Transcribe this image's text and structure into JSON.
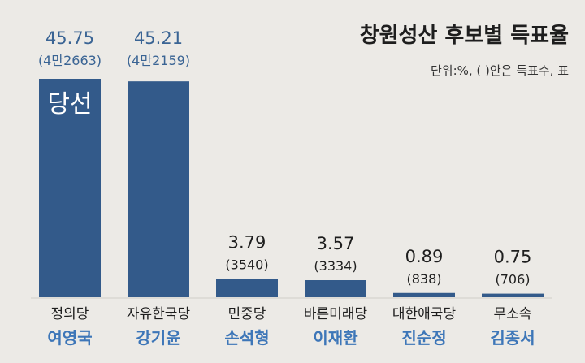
{
  "chart_data": {
    "type": "bar",
    "title": "창원성산 후보별 득표율",
    "subtitle": "단위:%, ( )안은 득표수, 표",
    "winner_label": "당선",
    "categories": [
      "정의당",
      "자유한국당",
      "민중당",
      "바른미래당",
      "대한애국당",
      "무소속"
    ],
    "candidates": [
      "여영국",
      "강기윤",
      "손석형",
      "이재환",
      "진순정",
      "김종서"
    ],
    "values": [
      45.75,
      45.21,
      3.79,
      3.57,
      0.89,
      0.75
    ],
    "value_labels": [
      "45.75",
      "45.21",
      "3.79",
      "3.57",
      "0.89",
      "0.75"
    ],
    "vote_labels": [
      "(4만2663)",
      "(4만2159)",
      "(3540)",
      "(3334)",
      "(838)",
      "(706)"
    ],
    "ylim": [
      0,
      45.75
    ],
    "highlight_count": 2,
    "bar_color": "#335a8a",
    "highlight_text_color": "#3a6494",
    "candidate_color": "#3d76b8",
    "text_color": "#1e1e1e"
  }
}
